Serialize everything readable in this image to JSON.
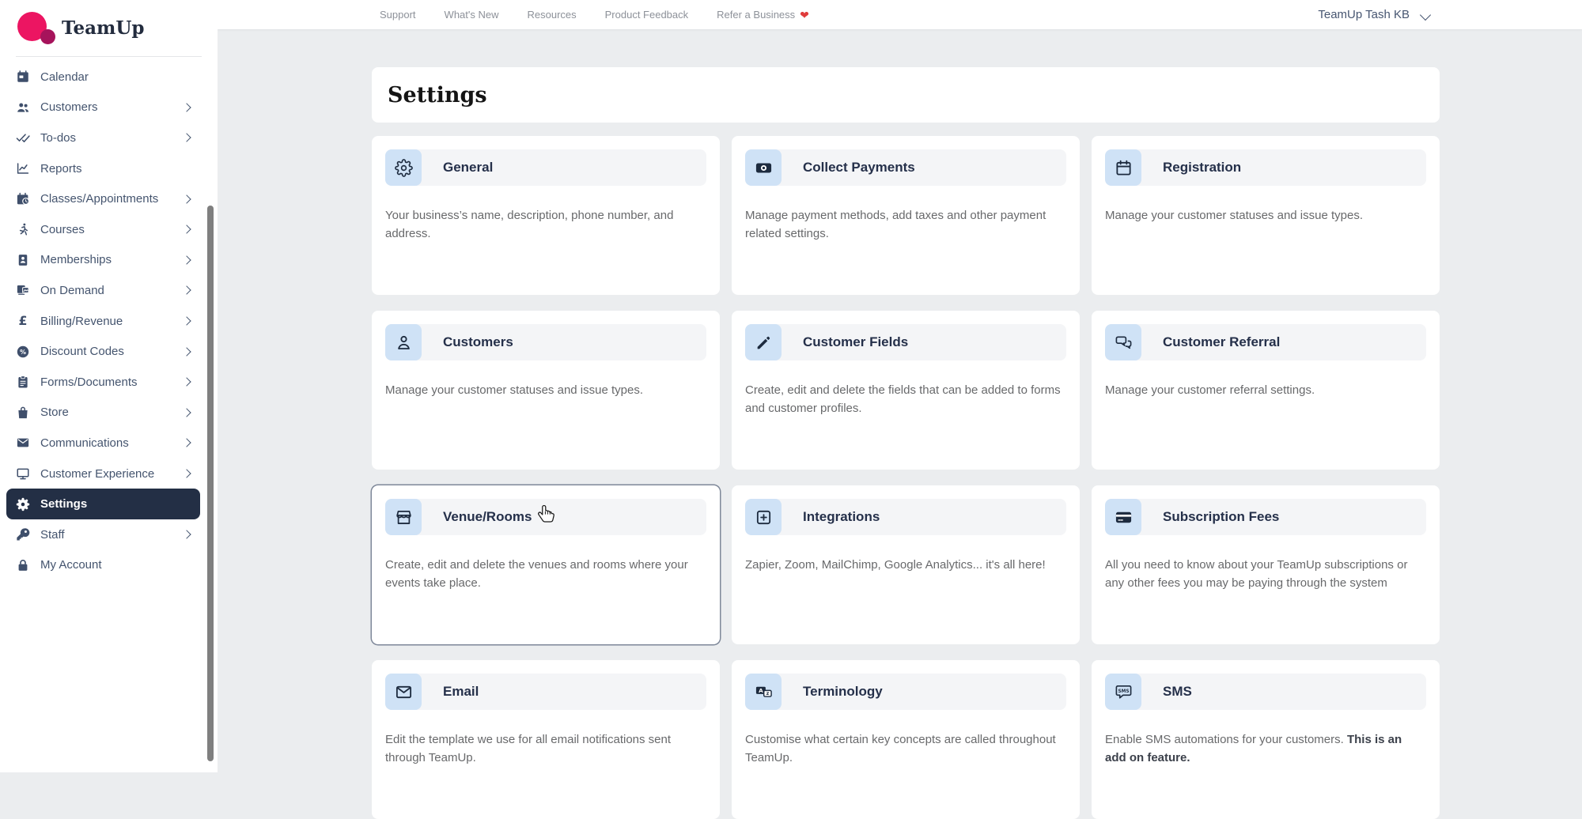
{
  "topbar": {
    "links": [
      {
        "label": "Support"
      },
      {
        "label": "What's New"
      },
      {
        "label": "Resources"
      },
      {
        "label": "Product Feedback"
      },
      {
        "label": "Refer a Business",
        "heart_icon": "heart"
      }
    ],
    "account_menu": {
      "label": "TeamUp Tash KB",
      "chevron_icon": "chevron-down"
    }
  },
  "sidebar": {
    "logo_text": "TeamUp",
    "items": [
      {
        "label": "Calendar",
        "icon": "calendar",
        "chevron": false,
        "active": false
      },
      {
        "label": "Customers",
        "icon": "people",
        "chevron": true,
        "active": false
      },
      {
        "label": "To-dos",
        "icon": "double-check",
        "chevron": true,
        "active": false
      },
      {
        "label": "Reports",
        "icon": "chart-line",
        "chevron": false,
        "active": false
      },
      {
        "label": "Classes/Appointments",
        "icon": "calendar-clock",
        "chevron": true,
        "active": false
      },
      {
        "label": "Courses",
        "icon": "runner",
        "chevron": true,
        "active": false
      },
      {
        "label": "Memberships",
        "icon": "id-card",
        "chevron": true,
        "active": false
      },
      {
        "label": "On Demand",
        "icon": "on-demand",
        "chevron": true,
        "active": false
      },
      {
        "label": "Billing/Revenue",
        "icon": "pound",
        "chevron": true,
        "active": false
      },
      {
        "label": "Discount Codes",
        "icon": "percent-badge",
        "chevron": true,
        "active": false
      },
      {
        "label": "Forms/Documents",
        "icon": "clipboard",
        "chevron": true,
        "active": false
      },
      {
        "label": "Store",
        "icon": "shopping-bag",
        "chevron": true,
        "active": false
      },
      {
        "label": "Communications",
        "icon": "envelope",
        "chevron": true,
        "active": false
      },
      {
        "label": "Customer Experience",
        "icon": "monitor",
        "chevron": true,
        "active": false
      },
      {
        "label": "Settings",
        "icon": "gear",
        "chevron": false,
        "active": true
      },
      {
        "label": "Staff",
        "icon": "key",
        "chevron": true,
        "active": false
      },
      {
        "label": "My Account",
        "icon": "lock",
        "chevron": false,
        "active": false
      }
    ]
  },
  "main": {
    "title": "Settings",
    "cards": [
      {
        "title": "General",
        "icon": "gear-outline",
        "description": "Your business’s name, description, phone number, and address."
      },
      {
        "title": "Collect Payments",
        "icon": "banknote",
        "description": "Manage payment methods, add taxes and other payment related settings."
      },
      {
        "title": "Registration",
        "icon": "calendar-outline",
        "description": "Manage your customer statuses and issue types."
      },
      {
        "title": "Customers",
        "icon": "person-outline",
        "description": "Manage your customer statuses and issue types."
      },
      {
        "title": "Customer Fields",
        "icon": "pencil",
        "description": "Create, edit and delete the fields that can be added to forms and customer profiles."
      },
      {
        "title": "Customer Referral",
        "icon": "chat-bubbles",
        "description": "Manage your customer referral settings."
      },
      {
        "title": "Venue/Rooms",
        "icon": "storefront",
        "description": "Create, edit and delete the venues and rooms where your events take place.",
        "hovered": true
      },
      {
        "title": "Integrations",
        "icon": "plus-square",
        "description": "Zapier, Zoom, MailChimp, Google Analytics... it's all here!"
      },
      {
        "title": "Subscription Fees",
        "icon": "credit-card",
        "description": "All you need to know about your TeamUp subscriptions or any other fees you may be paying through the system"
      },
      {
        "title": "Email",
        "icon": "envelope-outline",
        "description": "Edit the template we use for all email notifications sent through TeamUp."
      },
      {
        "title": "Terminology",
        "icon": "translate",
        "description": "Customise what certain key concepts are called throughout TeamUp."
      },
      {
        "title": "SMS",
        "icon": "sms-bubble",
        "description": "Enable SMS automations for your customers. ",
        "description_bold": "This is an add on feature."
      }
    ]
  },
  "colors": {
    "brand_pink": "#ec1562",
    "brand_pink_dark": "#a6135b",
    "active_navy": "#232f45",
    "icon_tile_blue": "#cfe2f6",
    "heart_red": "#e03c3c",
    "page_background": "#ebedef"
  }
}
